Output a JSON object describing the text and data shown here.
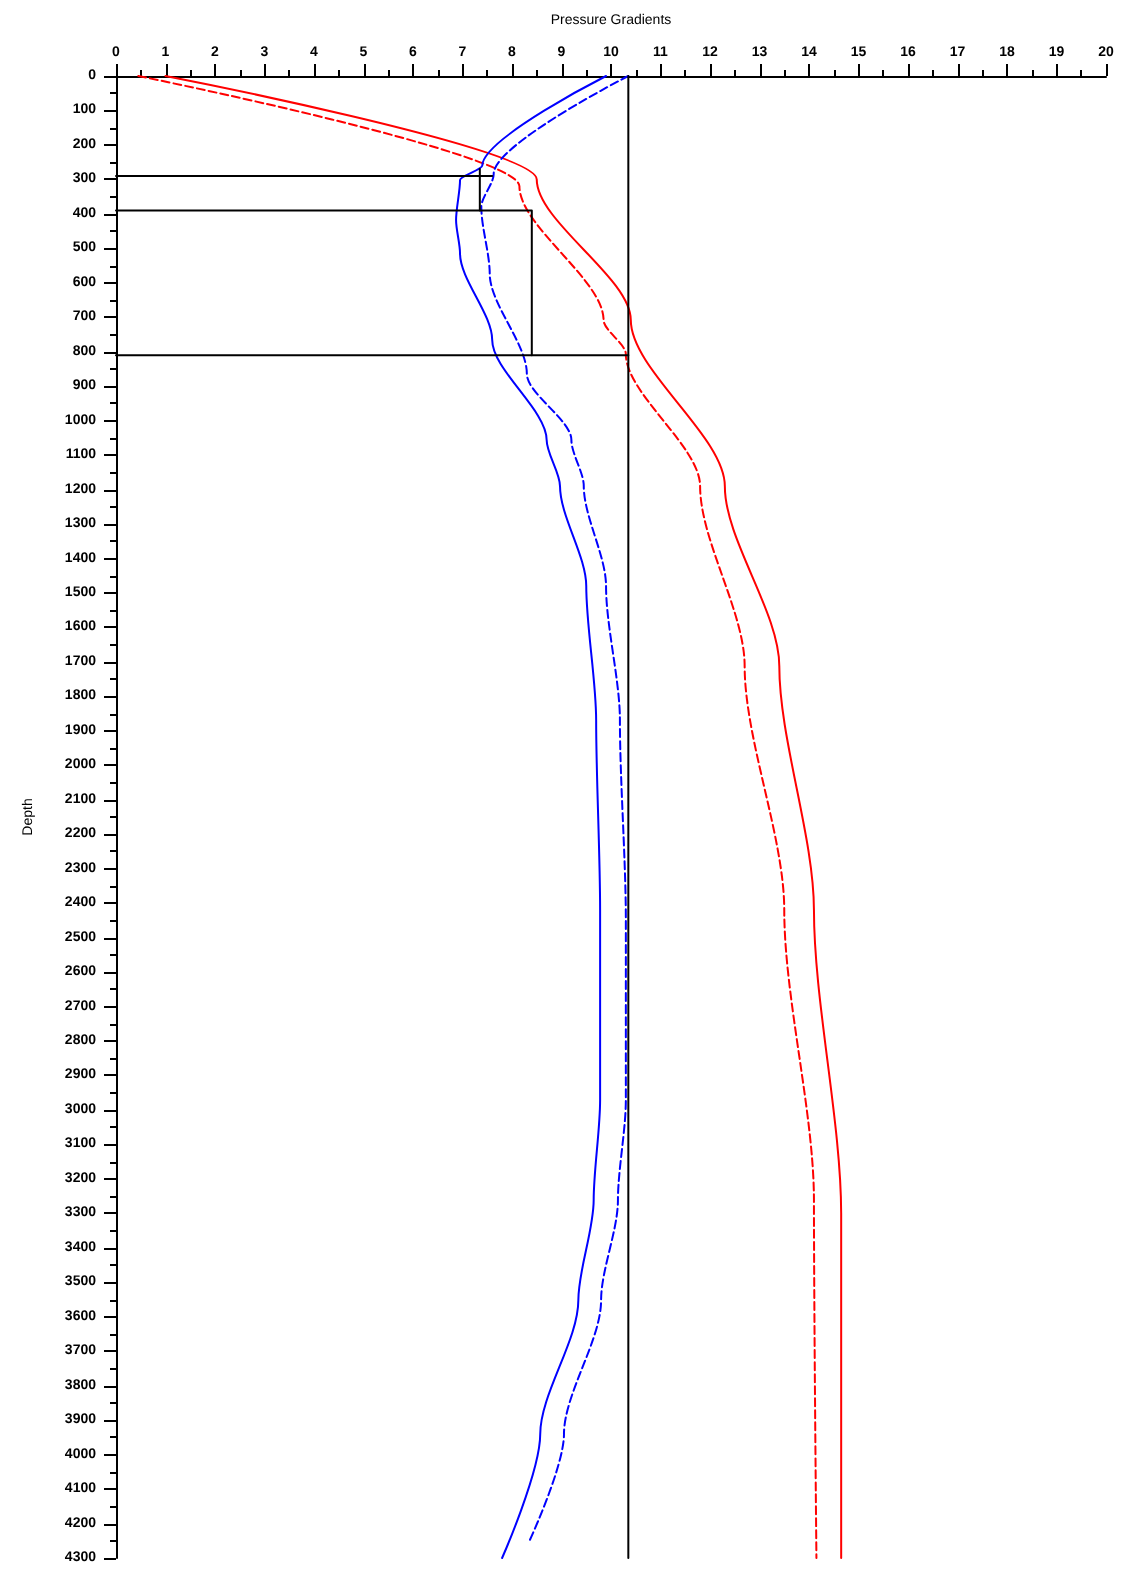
{
  "chart_data": {
    "type": "line",
    "xlabel": "Pressure Gradients",
    "ylabel": "Depth",
    "xlim": [
      0,
      20
    ],
    "xticks": [
      0,
      1,
      2,
      3,
      4,
      5,
      6,
      7,
      8,
      9,
      10,
      11,
      12,
      13,
      14,
      15,
      16,
      17,
      18,
      19,
      20
    ],
    "ylim": [
      4300,
      0
    ],
    "yticks": [
      0,
      100,
      200,
      300,
      400,
      500,
      600,
      700,
      800,
      900,
      1000,
      1100,
      1200,
      1300,
      1400,
      1500,
      1600,
      1700,
      1800,
      1900,
      2000,
      2100,
      2200,
      2300,
      2400,
      2500,
      2600,
      2700,
      2800,
      2900,
      3000,
      3100,
      3200,
      3300,
      3400,
      3500,
      3600,
      3700,
      3800,
      3900,
      4000,
      4100,
      4200,
      4300
    ],
    "grid": false,
    "marker": "none",
    "series": [
      {
        "color": "#ff0000",
        "line_style": "solid",
        "x": [
          1.0,
          8.5,
          10.4,
          12.3,
          13.4,
          14.1,
          14.65,
          14.65
        ],
        "values": [
          0,
          300,
          708,
          1190,
          1712,
          2420,
          3300,
          4300
        ]
      },
      {
        "color": "#ff0000",
        "line_style": "dashed",
        "x": [
          0.45,
          8.15,
          9.85,
          10.3,
          11.8,
          12.7,
          13.5,
          14.1,
          14.15
        ],
        "values": [
          0,
          320,
          708,
          807,
          1190,
          1712,
          2420,
          3262,
          4300
        ]
      },
      {
        "color": "#0000ff",
        "line_style": "solid",
        "x": [
          9.9,
          7.4,
          6.95,
          6.87,
          6.95,
          7.6,
          8.7,
          8.97,
          9.5,
          9.7,
          9.78,
          9.78,
          9.65,
          9.34,
          8.57,
          7.8
        ],
        "values": [
          0,
          260,
          302,
          418,
          515,
          766,
          1056,
          1190,
          1480,
          1869,
          2420,
          2971,
          3262,
          3552,
          3941,
          4300
        ]
      },
      {
        "color": "#0000ff",
        "line_style": "dashed",
        "x": [
          10.35,
          7.63,
          7.38,
          7.55,
          8.3,
          9.2,
          9.45,
          9.9,
          10.18,
          10.3,
          10.3,
          10.14,
          9.8,
          9.05,
          8.36
        ],
        "values": [
          0,
          284,
          380,
          574,
          864,
          1056,
          1190,
          1480,
          1869,
          2449,
          2971,
          3262,
          3552,
          3941,
          4248
        ]
      },
      {
        "color": "#000000",
        "line_style": "solid",
        "x": [
          0,
          7.6
        ],
        "values": [
          290,
          290
        ]
      },
      {
        "color": "#000000",
        "line_style": "solid",
        "x": [
          7.35,
          7.35
        ],
        "values": [
          270,
          390
        ]
      },
      {
        "color": "#000000",
        "line_style": "solid",
        "x": [
          0,
          8.4,
          8.4
        ],
        "values": [
          390,
          390,
          810
        ]
      },
      {
        "color": "#000000",
        "line_style": "solid",
        "x": [
          0,
          10.35
        ],
        "values": [
          810,
          810
        ]
      },
      {
        "color": "#000000",
        "line_style": "solid",
        "x": [
          10.35,
          10.35
        ],
        "values": [
          0,
          4300
        ]
      }
    ]
  }
}
